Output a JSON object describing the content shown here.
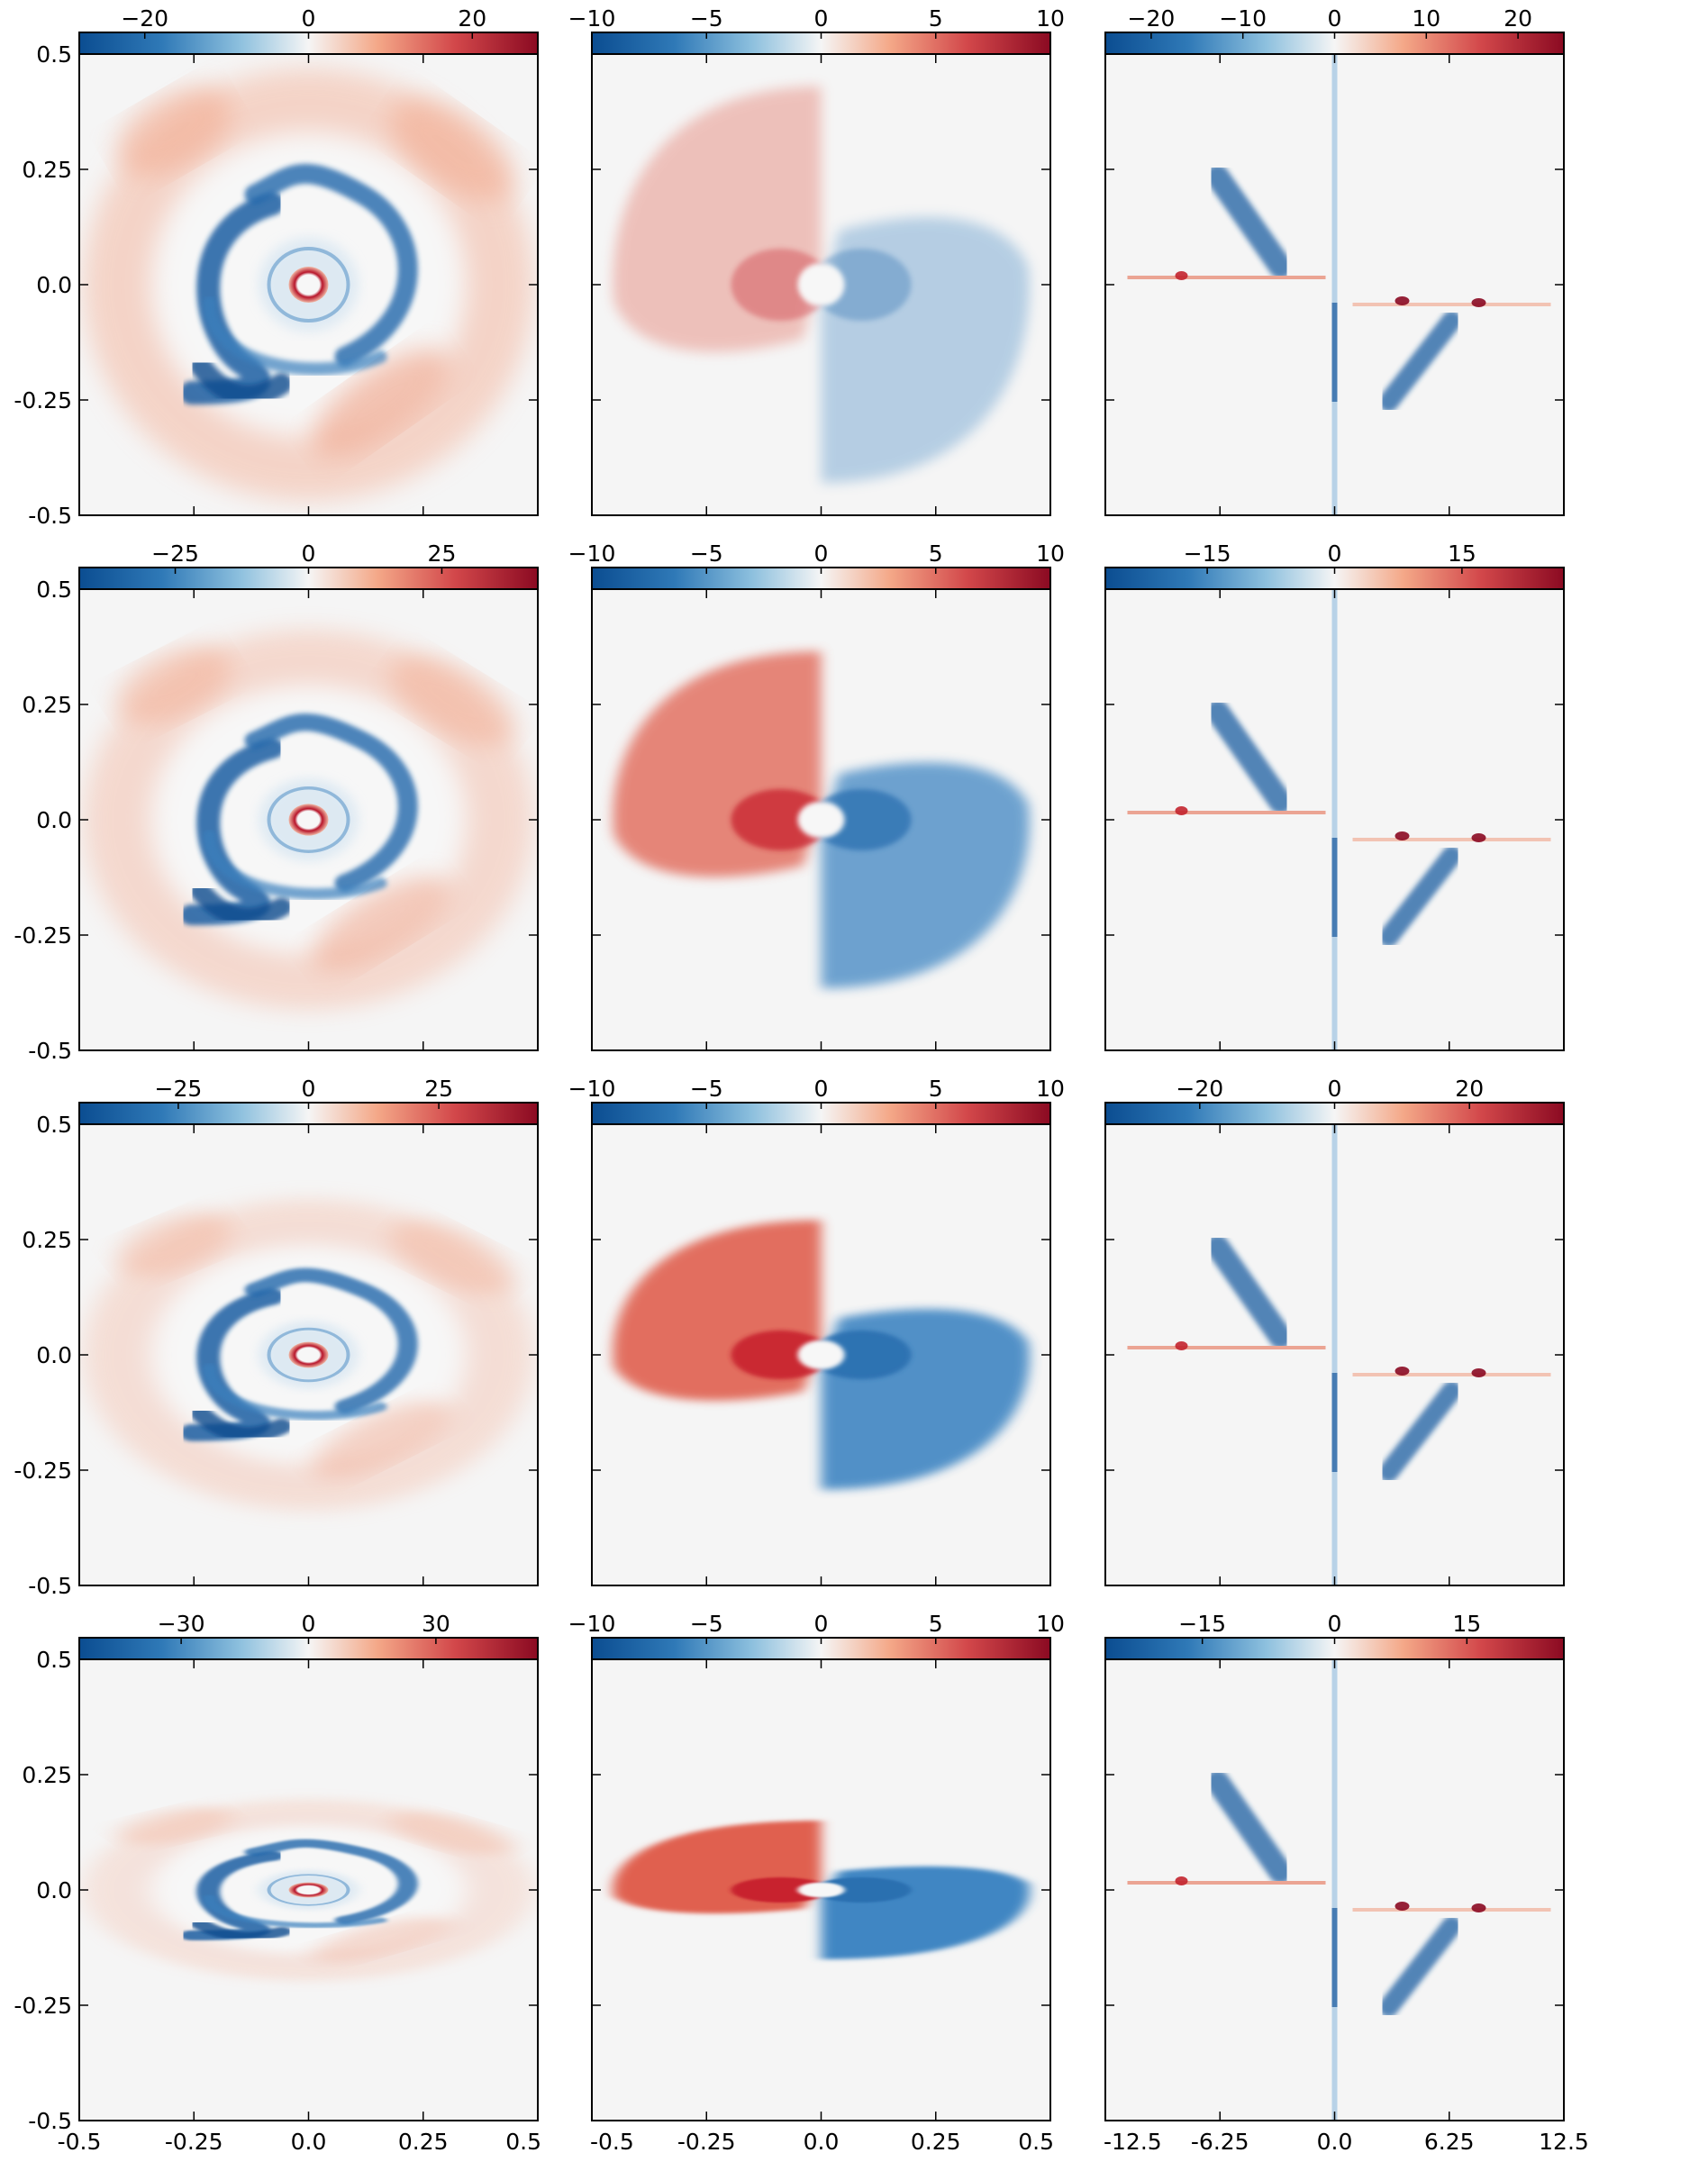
{
  "figure": {
    "rows": 4,
    "cols": 3,
    "colors": {
      "neg": "#0b4d91",
      "mid": "#f5f5f5",
      "pos": "#8b0a22",
      "frame": "#000000"
    }
  },
  "chart_data": [
    {
      "type": "heatmap",
      "row": 1,
      "col": 1,
      "xlim": [
        -0.5,
        0.5
      ],
      "ylim": [
        -0.5,
        0.5
      ],
      "colorbar": {
        "range": [
          -28,
          28
        ],
        "ticks": [
          -20,
          0,
          20
        ],
        "ticklabels": [
          "−20",
          "0",
          "20"
        ]
      },
      "yticks": [
        0.5,
        0.25,
        0.0,
        -0.25,
        -0.5
      ],
      "yticklabels": [
        "0.5",
        "0.25",
        "0.0",
        "-0.25",
        "-0.5"
      ],
      "xticklabels": []
    },
    {
      "type": "heatmap",
      "row": 1,
      "col": 2,
      "xlim": [
        -0.5,
        0.5
      ],
      "ylim": [
        -0.5,
        0.5
      ],
      "colorbar": {
        "range": [
          -10,
          10
        ],
        "ticks": [
          -10,
          -5,
          0,
          5,
          10
        ],
        "ticklabels": [
          "−10",
          "−5",
          "0",
          "5",
          "10"
        ]
      },
      "yticklabels": [],
      "xticklabels": []
    },
    {
      "type": "heatmap",
      "row": 1,
      "col": 3,
      "xlim": [
        -12.5,
        12.5
      ],
      "ylim": [
        -0.5,
        0.5
      ],
      "colorbar": {
        "range": [
          -25,
          25
        ],
        "ticks": [
          -20,
          -10,
          0,
          10,
          20
        ],
        "ticklabels": [
          "−20",
          "−10",
          "0",
          "10",
          "20"
        ]
      },
      "yticklabels": [],
      "xticklabels": []
    },
    {
      "type": "heatmap",
      "row": 2,
      "col": 1,
      "xlim": [
        -0.5,
        0.5
      ],
      "ylim": [
        -0.5,
        0.5
      ],
      "colorbar": {
        "range": [
          -43,
          43
        ],
        "ticks": [
          -25,
          0,
          25
        ],
        "ticklabels": [
          "−25",
          "0",
          "25"
        ]
      },
      "yticks": [
        0.5,
        0.25,
        0.0,
        -0.25,
        -0.5
      ],
      "yticklabels": [
        "0.5",
        "0.25",
        "0.0",
        "-0.25",
        "-0.5"
      ],
      "xticklabels": []
    },
    {
      "type": "heatmap",
      "row": 2,
      "col": 2,
      "xlim": [
        -0.5,
        0.5
      ],
      "ylim": [
        -0.5,
        0.5
      ],
      "colorbar": {
        "range": [
          -10,
          10
        ],
        "ticks": [
          -10,
          -5,
          0,
          5,
          10
        ],
        "ticklabels": [
          "−10",
          "−5",
          "0",
          "5",
          "10"
        ]
      },
      "yticklabels": [],
      "xticklabels": []
    },
    {
      "type": "heatmap",
      "row": 2,
      "col": 3,
      "xlim": [
        -12.5,
        12.5
      ],
      "ylim": [
        -0.5,
        0.5
      ],
      "colorbar": {
        "range": [
          -27,
          27
        ],
        "ticks": [
          -15,
          0,
          15
        ],
        "ticklabels": [
          "−15",
          "0",
          "15"
        ]
      },
      "yticklabels": [],
      "xticklabels": []
    },
    {
      "type": "heatmap",
      "row": 3,
      "col": 1,
      "xlim": [
        -0.5,
        0.5
      ],
      "ylim": [
        -0.5,
        0.5
      ],
      "colorbar": {
        "range": [
          -44,
          44
        ],
        "ticks": [
          -25,
          0,
          25
        ],
        "ticklabels": [
          "−25",
          "0",
          "25"
        ]
      },
      "yticks": [
        0.5,
        0.25,
        0.0,
        -0.25,
        -0.5
      ],
      "yticklabels": [
        "0.5",
        "0.25",
        "0.0",
        "-0.25",
        "-0.5"
      ],
      "xticklabels": []
    },
    {
      "type": "heatmap",
      "row": 3,
      "col": 2,
      "xlim": [
        -0.5,
        0.5
      ],
      "ylim": [
        -0.5,
        0.5
      ],
      "colorbar": {
        "range": [
          -10,
          10
        ],
        "ticks": [
          -10,
          -5,
          0,
          5,
          10
        ],
        "ticklabels": [
          "−10",
          "−5",
          "0",
          "5",
          "10"
        ]
      },
      "yticklabels": [],
      "xticklabels": []
    },
    {
      "type": "heatmap",
      "row": 3,
      "col": 3,
      "xlim": [
        -12.5,
        12.5
      ],
      "ylim": [
        -0.5,
        0.5
      ],
      "colorbar": {
        "range": [
          -34,
          34
        ],
        "ticks": [
          -20,
          0,
          20
        ],
        "ticklabels": [
          "−20",
          "0",
          "20"
        ]
      },
      "yticklabels": [],
      "xticklabels": []
    },
    {
      "type": "heatmap",
      "row": 4,
      "col": 1,
      "xlim": [
        -0.5,
        0.5
      ],
      "ylim": [
        -0.5,
        0.5
      ],
      "colorbar": {
        "range": [
          -54,
          54
        ],
        "ticks": [
          -30,
          0,
          30
        ],
        "ticklabels": [
          "−30",
          "0",
          "30"
        ]
      },
      "yticks": [
        0.5,
        0.25,
        0.0,
        -0.25,
        -0.5
      ],
      "yticklabels": [
        "0.5",
        "0.25",
        "0.0",
        "-0.25",
        "-0.5"
      ],
      "xticks": [
        -0.5,
        -0.25,
        0.0,
        0.25,
        0.5
      ],
      "xticklabels": [
        "-0.5",
        "-0.25",
        "0.0",
        "0.25",
        "0.5"
      ]
    },
    {
      "type": "heatmap",
      "row": 4,
      "col": 2,
      "xlim": [
        -0.5,
        0.5
      ],
      "ylim": [
        -0.5,
        0.5
      ],
      "colorbar": {
        "range": [
          -10,
          10
        ],
        "ticks": [
          -10,
          -5,
          0,
          5,
          10
        ],
        "ticklabels": [
          "−10",
          "−5",
          "0",
          "5",
          "10"
        ]
      },
      "yticklabels": [],
      "xticks": [
        -0.5,
        -0.25,
        0.0,
        0.25,
        0.5
      ],
      "xticklabels": [
        "-0.5",
        "-0.25",
        "0.0",
        "0.25",
        "0.5"
      ]
    },
    {
      "type": "heatmap",
      "row": 4,
      "col": 3,
      "xlim": [
        -12.5,
        12.5
      ],
      "ylim": [
        -0.5,
        0.5
      ],
      "colorbar": {
        "range": [
          -26,
          26
        ],
        "ticks": [
          -15,
          0,
          15
        ],
        "ticklabels": [
          "−15",
          "0",
          "15"
        ]
      },
      "yticklabels": [],
      "xticks": [
        -12.5,
        -6.25,
        0.0,
        6.25,
        12.5
      ],
      "xticklabels": [
        "-12.5",
        "-6.25",
        "0.0",
        "6.25",
        "12.5"
      ]
    }
  ]
}
